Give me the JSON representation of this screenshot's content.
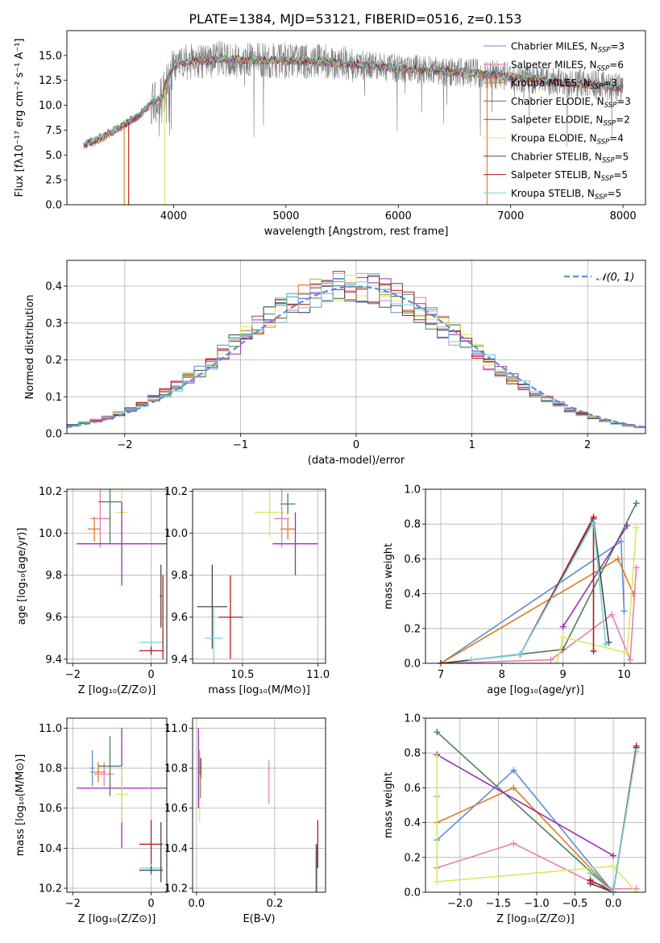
{
  "figure": {
    "title": "PLATE=1384, MJD=53121, FIBERID=0516, z=0.153"
  },
  "colors": {
    "Chabrier MILES": "#5b8ed6",
    "Salpeter MILES": "#e87fb5",
    "Kroupa MILES": "#e07b22",
    "Chabrier ELODIE": "#4f7d5e",
    "Salpeter ELODIE": "#9a2fb0",
    "Kroupa ELODIE": "#d8ea5a",
    "Chabrier STELIB": "#4a4a4a",
    "Salpeter STELIB": "#b01c1c",
    "Kroupa STELIB": "#6fd6dc",
    "data": "#808080",
    "gaussian": "#5b8ed6"
  },
  "chart_data": [
    {
      "id": "spectrum",
      "type": "line",
      "xlabel": "wavelength [Angstrom, rest frame]",
      "ylabel": "Flux [fλ10⁻¹⁷ erg cm⁻² s⁻¹ A⁻¹]",
      "xlim": [
        3050,
        8200
      ],
      "ylim": [
        0,
        17.5
      ],
      "xticks": [
        4000,
        5000,
        6000,
        7000,
        8000
      ],
      "yticks": [
        0.0,
        2.5,
        5.0,
        7.5,
        10.0,
        12.5,
        15.0
      ],
      "grid": false,
      "legend_position": "top-right",
      "legend": [
        {
          "name": "Chabrier MILES",
          "nssp": "3"
        },
        {
          "name": "Salpeter MILES",
          "nssp": "6"
        },
        {
          "name": "Kroupa MILES",
          "nssp": "3"
        },
        {
          "name": "Chabrier ELODIE",
          "nssp": "3"
        },
        {
          "name": "Salpeter ELODIE",
          "nssp": "2"
        },
        {
          "name": "Kroupa ELODIE",
          "nssp": "4"
        },
        {
          "name": "Chabrier STELIB",
          "nssp": "5"
        },
        {
          "name": "Salpeter STELIB",
          "nssp": "5"
        },
        {
          "name": "Kroupa STELIB",
          "nssp": "5"
        }
      ],
      "data_continuum": {
        "x": [
          3200,
          3300,
          3400,
          3500,
          3600,
          3700,
          3800,
          3900,
          3950,
          4000,
          4100,
          4200,
          4300,
          4400,
          4500,
          4700,
          5000,
          5300,
          5600,
          6000,
          6300,
          6600,
          6900,
          7200,
          7500,
          7800,
          8000
        ],
        "y": [
          6.0,
          6.4,
          7.0,
          7.6,
          8.3,
          9.0,
          10.2,
          10.8,
          12.8,
          14.0,
          14.3,
          14.5,
          14.4,
          14.7,
          14.6,
          14.5,
          14.5,
          14.4,
          14.1,
          13.7,
          13.5,
          13.3,
          13.0,
          12.6,
          12.2,
          12.0,
          11.7
        ]
      },
      "sharp_drops": [
        {
          "x": 3560,
          "color": "#e07b22"
        },
        {
          "x": 3600,
          "color": "#b01c1c"
        },
        {
          "x": 3920,
          "color": "#d8ea5a"
        },
        {
          "x": 6790,
          "color": "#e07b22"
        }
      ]
    },
    {
      "id": "residuals",
      "type": "area",
      "xlabel": "(data-model)/error",
      "ylabel": "Normed distribution",
      "xlim": [
        -2.5,
        2.5
      ],
      "ylim": [
        0,
        0.47
      ],
      "xticks": [
        -2,
        -1,
        0,
        1,
        2
      ],
      "yticks": [
        0.0,
        0.1,
        0.2,
        0.3,
        0.4
      ],
      "grid": true,
      "legend_position": "top-right",
      "legend_label": "𝒩(0, 1)",
      "bin_width": 0.1,
      "bin_start": -2.5
    },
    {
      "id": "age_vs_Z",
      "type": "scatter",
      "xlabel": "Z [log₁₀(Z/Z⊙)]",
      "ylabel": "age  [log₁₀(age/yr)]",
      "xlim": [
        -2.15,
        0.4
      ],
      "ylim": [
        9.38,
        10.21
      ],
      "xticks": [
        -2,
        0
      ],
      "yticks": [
        9.4,
        9.6,
        9.8,
        10.0,
        10.2
      ],
      "grid": true,
      "points": [
        {
          "model": "Kroupa MILES",
          "x": -1.45,
          "xerr": 0.17,
          "y": 10.02,
          "yerr": 0.06
        },
        {
          "model": "Salpeter MILES",
          "x": -1.3,
          "xerr": 0.25,
          "y": 10.07,
          "yerr": 0.14
        },
        {
          "model": "Chabrier ELODIE",
          "x": -1.05,
          "xerr": 0.3,
          "y": 10.15,
          "yerr": 0.2
        },
        {
          "model": "Kroupa ELODIE",
          "x": -0.75,
          "xerr": 0.17,
          "y": 10.1,
          "yerr": 0.12
        },
        {
          "model": "Salpeter ELODIE",
          "x": -0.75,
          "xerr": 1.15,
          "y": 9.95,
          "yerr": 0.2
        },
        {
          "model": "Chabrier STELIB",
          "x": 0.25,
          "xerr": 0.03,
          "y": 9.7,
          "yerr": 0.15
        },
        {
          "model": "Kroupa STELIB",
          "x": 0.0,
          "xerr": 0.3,
          "y": 9.48,
          "yerr": 0.02
        },
        {
          "model": "Salpeter STELIB",
          "x": 0.0,
          "xerr": 0.3,
          "y": 9.44,
          "yerr": 0.02
        },
        {
          "model": "Salpeter STELIB",
          "x": 0.3,
          "xerr": 0.0,
          "y": 9.6,
          "yerr": 0.2
        }
      ]
    },
    {
      "id": "age_vs_mass",
      "type": "scatter",
      "xlabel": "mass [log₁₀(M/M⊙)]",
      "xlim": [
        10.17,
        11.05
      ],
      "ylim": [
        9.38,
        10.21
      ],
      "xticks": [
        10.5,
        11.0
      ],
      "yticks": [
        9.4,
        9.6,
        9.8,
        10.0,
        10.2
      ],
      "grid": true,
      "points": [
        {
          "model": "Chabrier ELODIE",
          "x": 10.8,
          "xerr": 0.05,
          "y": 10.14,
          "yerr": 0.05
        },
        {
          "model": "Kroupa ELODIE",
          "x": 10.68,
          "xerr": 0.1,
          "y": 10.1,
          "yerr": 0.12
        },
        {
          "model": "Kroupa MILES",
          "x": 10.8,
          "xerr": 0.05,
          "y": 10.02,
          "yerr": 0.05
        },
        {
          "model": "Salpeter MILES",
          "x": 10.76,
          "xerr": 0.05,
          "y": 10.07,
          "yerr": 0.14
        },
        {
          "model": "Salpeter ELODIE",
          "x": 10.85,
          "xerr": 0.15,
          "y": 9.95,
          "yerr": 0.15
        },
        {
          "model": "Chabrier STELIB",
          "x": 10.3,
          "xerr": 0.1,
          "y": 9.65,
          "yerr": 0.2
        },
        {
          "model": "Kroupa STELIB",
          "x": 10.31,
          "xerr": 0.06,
          "y": 9.5,
          "yerr": 0.15
        },
        {
          "model": "Salpeter STELIB",
          "x": 10.42,
          "xerr": 0.08,
          "y": 9.6,
          "yerr": 0.2
        }
      ]
    },
    {
      "id": "weight_vs_age",
      "type": "line",
      "xlabel": "age  [log₁₀(age/yr)]",
      "ylabel": "mass weight",
      "xlim": [
        6.75,
        10.35
      ],
      "ylim": [
        0,
        1
      ],
      "xticks": [
        7,
        8,
        9,
        10
      ],
      "yticks": [
        0.0,
        0.2,
        0.4,
        0.6,
        0.8,
        1.0
      ],
      "grid": true,
      "series": [
        {
          "model": "Chabrier MILES",
          "points": [
            [
              7.0,
              0.0
            ],
            [
              9.95,
              0.7
            ],
            [
              10.0,
              0.3
            ]
          ]
        },
        {
          "model": "Kroupa MILES",
          "points": [
            [
              7.0,
              0.0
            ],
            [
              9.9,
              0.6
            ],
            [
              10.15,
              0.4
            ]
          ]
        },
        {
          "model": "Salpeter MILES",
          "points": [
            [
              7.0,
              0.0
            ],
            [
              8.8,
              0.02
            ],
            [
              9.8,
              0.28
            ],
            [
              10.1,
              0.02
            ],
            [
              10.2,
              0.55
            ]
          ]
        },
        {
          "model": "Chabrier ELODIE",
          "points": [
            [
              7.0,
              0.0
            ],
            [
              9.0,
              0.08
            ],
            [
              10.2,
              0.92
            ]
          ]
        },
        {
          "model": "Salpeter ELODIE",
          "points": [
            [
              9.0,
              0.21
            ],
            [
              10.05,
              0.79
            ]
          ]
        },
        {
          "model": "Kroupa ELODIE",
          "points": [
            [
              8.9,
              0.0
            ],
            [
              9.0,
              0.15
            ],
            [
              10.05,
              0.06
            ],
            [
              10.2,
              0.78
            ]
          ]
        },
        {
          "model": "Chabrier STELIB",
          "points": [
            [
              7.0,
              0.0
            ],
            [
              8.3,
              0.05
            ],
            [
              9.5,
              0.83
            ],
            [
              9.75,
              0.12
            ]
          ]
        },
        {
          "model": "Salpeter STELIB",
          "points": [
            [
              8.3,
              0.05
            ],
            [
              9.5,
              0.84
            ],
            [
              9.5,
              0.07
            ]
          ]
        },
        {
          "model": "Kroupa STELIB",
          "points": [
            [
              7.5,
              0.02
            ],
            [
              8.3,
              0.05
            ],
            [
              9.5,
              0.81
            ],
            [
              9.7,
              0.11
            ]
          ]
        }
      ]
    },
    {
      "id": "mass_vs_Z",
      "type": "scatter",
      "xlabel": "Z [log₁₀(Z/Z⊙)]",
      "ylabel": "mass [log₁₀(M/M⊙)]",
      "xlim": [
        -2.15,
        0.4
      ],
      "ylim": [
        10.18,
        11.05
      ],
      "xticks": [
        -2,
        0
      ],
      "yticks": [
        10.2,
        10.4,
        10.6,
        10.8,
        11.0
      ],
      "grid": true,
      "points": [
        {
          "model": "Chabrier MILES",
          "x": -1.5,
          "xerr": 0.05,
          "y": 10.8,
          "yerr": 0.09
        },
        {
          "model": "Kroupa MILES",
          "x": -1.35,
          "xerr": 0.2,
          "y": 10.78,
          "yerr": 0.05
        },
        {
          "model": "Salpeter MILES",
          "x": -1.2,
          "xerr": 0.25,
          "y": 10.77,
          "yerr": 0.06
        },
        {
          "model": "Chabrier ELODIE",
          "x": -1.05,
          "xerr": 0.3,
          "y": 10.81,
          "yerr": 0.15
        },
        {
          "model": "Salpeter ELODIE",
          "x": -0.75,
          "xerr": 1.15,
          "y": 10.7,
          "yerr": 0.3
        },
        {
          "model": "Kroupa ELODIE",
          "x": -0.75,
          "xerr": 0.17,
          "y": 10.67,
          "yerr": 0.14
        },
        {
          "model": "Salpeter STELIB",
          "x": 0.0,
          "xerr": 0.3,
          "y": 10.42,
          "yerr": 0.12
        },
        {
          "model": "Kroupa STELIB",
          "x": 0.0,
          "xerr": 0.3,
          "y": 10.3,
          "yerr": 0.02
        },
        {
          "model": "Chabrier STELIB",
          "x": 0.0,
          "xerr": 0.3,
          "y": 10.29,
          "yerr": 0.02
        },
        {
          "model": "Chabrier STELIB",
          "x": 0.25,
          "xerr": 0.0,
          "y": 10.38,
          "yerr": 0.15
        }
      ]
    },
    {
      "id": "mass_vs_ebv",
      "type": "scatter",
      "xlabel": "E(B-V)",
      "xlim": [
        -0.01,
        0.33
      ],
      "ylim": [
        10.18,
        11.05
      ],
      "xticks": [
        0.0,
        0.2
      ],
      "yticks": [
        10.2,
        10.4,
        10.6,
        10.8,
        11.0
      ],
      "grid": true,
      "points": [
        {
          "model": "Salpeter ELODIE",
          "x": 0.005,
          "y": 10.8,
          "yerr": 0.2
        },
        {
          "model": "Salpeter MILES",
          "x": 0.008,
          "y": 10.82,
          "yerr": 0.07
        },
        {
          "model": "Chabrier ELODIE",
          "x": 0.01,
          "y": 10.75,
          "yerr": 0.1
        },
        {
          "model": "Kroupa ELODIE",
          "x": 0.008,
          "y": 10.65,
          "yerr": 0.12
        },
        {
          "model": "Kroupa MILES",
          "x": 0.012,
          "y": 10.8,
          "yerr": 0.05
        },
        {
          "model": "Salpeter MILES",
          "x": 0.185,
          "y": 10.73,
          "yerr": 0.11
        },
        {
          "model": "Salpeter STELIB",
          "x": 0.31,
          "y": 10.42,
          "yerr": 0.12
        },
        {
          "model": "Kroupa STELIB",
          "x": 0.305,
          "y": 10.3,
          "yerr": 0.12
        },
        {
          "model": "Chabrier STELIB",
          "x": 0.307,
          "y": 10.3,
          "yerr": 0.12
        }
      ]
    },
    {
      "id": "weight_vs_Z",
      "type": "line",
      "xlabel": "Z [log₁₀(Z/Z⊙)]",
      "ylabel": "mass weight",
      "xlim": [
        -2.45,
        0.42
      ],
      "ylim": [
        0,
        1
      ],
      "xticks": [
        -2.0,
        -1.5,
        -1.0,
        -0.5,
        0.0
      ],
      "yticks": [
        0.0,
        0.2,
        0.4,
        0.6,
        0.8,
        1.0
      ],
      "grid": true,
      "series": [
        {
          "model": "Chabrier MILES",
          "points": [
            [
              -2.3,
              0.3
            ],
            [
              -1.3,
              0.7
            ],
            [
              0.0,
              0.0
            ]
          ]
        },
        {
          "model": "Kroupa MILES",
          "points": [
            [
              -2.3,
              0.4
            ],
            [
              -1.3,
              0.6
            ],
            [
              0.0,
              0.0
            ]
          ]
        },
        {
          "model": "Salpeter MILES",
          "points": [
            [
              -2.3,
              0.55
            ],
            [
              -2.3,
              0.14
            ],
            [
              -1.3,
              0.28
            ],
            [
              -0.3,
              0.06
            ],
            [
              0.0,
              0.02
            ],
            [
              0.3,
              0.02
            ]
          ]
        },
        {
          "model": "Chabrier ELODIE",
          "points": [
            [
              -2.3,
              0.92
            ],
            [
              0.0,
              0.0
            ]
          ]
        },
        {
          "model": "Salpeter ELODIE",
          "points": [
            [
              -2.3,
              0.79
            ],
            [
              0.0,
              0.21
            ]
          ]
        },
        {
          "model": "Kroupa ELODIE",
          "points": [
            [
              -2.3,
              0.78
            ],
            [
              -2.3,
              0.06
            ],
            [
              0.0,
              0.15
            ],
            [
              0.3,
              0.0
            ]
          ]
        },
        {
          "model": "Chabrier STELIB",
          "points": [
            [
              -0.3,
              0.05
            ],
            [
              0.0,
              0.0
            ],
            [
              0.3,
              0.83
            ]
          ]
        },
        {
          "model": "Salpeter STELIB",
          "points": [
            [
              -0.3,
              0.07
            ],
            [
              0.0,
              0.0
            ],
            [
              0.3,
              0.84
            ]
          ]
        },
        {
          "model": "Kroupa STELIB",
          "points": [
            [
              -0.3,
              0.11
            ],
            [
              0.0,
              0.0
            ],
            [
              0.3,
              0.81
            ]
          ]
        }
      ]
    }
  ]
}
